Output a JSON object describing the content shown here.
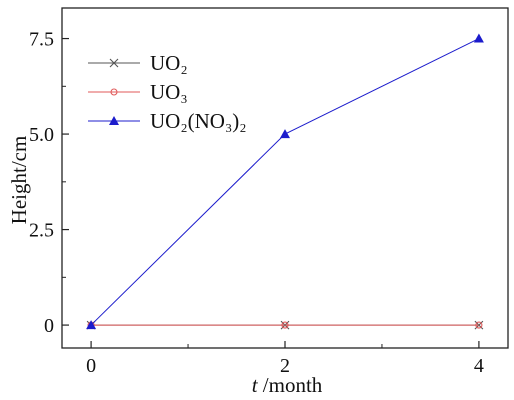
{
  "chart_data": {
    "type": "line",
    "xlabel_italic": "t",
    "xlabel_rest": " /month",
    "ylabel": "Height/cm",
    "x": [
      0,
      2,
      4
    ],
    "xlim": [
      -0.3,
      4.3
    ],
    "ylim": [
      -0.6,
      8.3
    ],
    "xticks": [
      "0",
      "2",
      "4"
    ],
    "yticks": [
      "0",
      "2.5",
      "5.0",
      "7.5"
    ],
    "ytick_values": [
      0,
      2.5,
      5.0,
      7.5
    ],
    "legend_position": "top-left",
    "series": [
      {
        "name": "UO₂",
        "marker": "x",
        "color": "#555555",
        "values": [
          0,
          0,
          0
        ]
      },
      {
        "name": "UO₃",
        "marker": "circle",
        "color": "#e05a5a",
        "values": [
          0,
          0,
          0
        ]
      },
      {
        "name": "UO₂(NO₃)₂",
        "marker": "triangle",
        "color": "#1c1ccc",
        "values": [
          0,
          5.0,
          7.5
        ]
      }
    ]
  }
}
